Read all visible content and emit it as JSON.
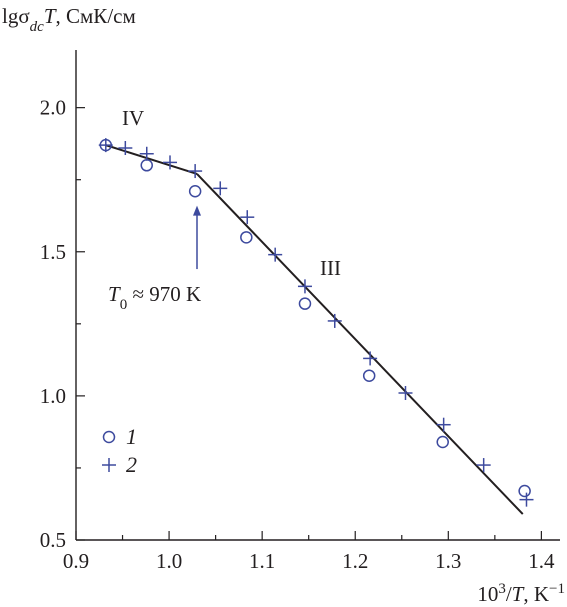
{
  "chart_data": {
    "type": "scatter",
    "ylabel": {
      "base": "lgσ",
      "sub": "dc",
      "mid": "T",
      "unit": ", СмК/см"
    },
    "xlabel": {
      "pre": "10",
      "sup": "3",
      "slash": "/",
      "var": "T",
      "unit": ", K",
      "unit_sup": "−1"
    },
    "xlim": [
      0.9,
      1.42
    ],
    "ylim": [
      0.5,
      2.2
    ],
    "x_ticks": [
      "0.9",
      "1.0",
      "1.1",
      "1.2",
      "1.3",
      "1.4"
    ],
    "y_ticks": [
      "0.5",
      "1.0",
      "1.5",
      "2.0"
    ],
    "grid": false,
    "legend_position": "bottom-left",
    "series": [
      {
        "name": "1",
        "marker": "circle",
        "x": [
          0.932,
          0.976,
          1.028,
          1.083,
          1.146,
          1.215,
          1.294,
          1.382
        ],
        "y": [
          1.87,
          1.8,
          1.71,
          1.55,
          1.32,
          1.07,
          0.84,
          0.67
        ]
      },
      {
        "name": "2",
        "marker": "plus",
        "x": [
          0.932,
          0.953,
          0.976,
          1.001,
          1.028,
          1.055,
          1.084,
          1.114,
          1.146,
          1.178,
          1.216,
          1.254,
          1.295,
          1.338,
          1.384
        ],
        "y": [
          1.87,
          1.86,
          1.84,
          1.81,
          1.78,
          1.72,
          1.62,
          1.49,
          1.38,
          1.26,
          1.13,
          1.01,
          0.9,
          0.76,
          0.64
        ]
      }
    ],
    "fit_lines": [
      {
        "x": [
          0.932,
          1.03
        ],
        "y": [
          1.87,
          1.77
        ]
      },
      {
        "x": [
          1.03,
          1.38
        ],
        "y": [
          1.77,
          0.59
        ]
      }
    ],
    "annotations": {
      "region_iv": "IV",
      "region_iii": "III",
      "t0": {
        "var": "T",
        "sub": "0",
        "rest": " ≈ 970 K"
      },
      "t0_arrow": {
        "x": 1.03,
        "y_from": 1.44,
        "y_to": 1.66
      }
    },
    "legend": [
      {
        "marker": "circle",
        "label": "1"
      },
      {
        "marker": "plus",
        "label": "2"
      }
    ],
    "colors": {
      "marker": "#3d4a9e",
      "line": "#231f20",
      "axis": "#231f20"
    }
  }
}
